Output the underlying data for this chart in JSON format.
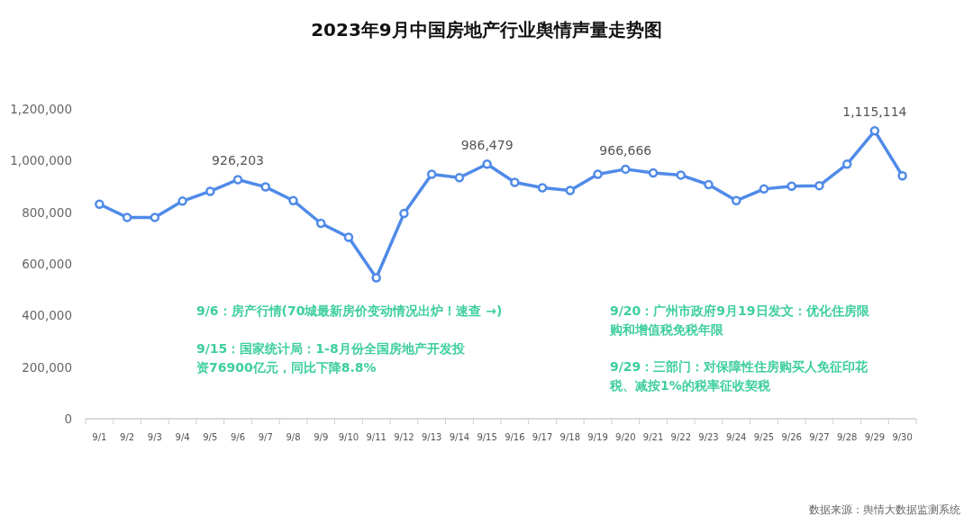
{
  "chart_data": {
    "type": "line",
    "title": "2023年9月中国房地产行业舆情声量走势图",
    "categories": [
      "9/1",
      "9/2",
      "9/3",
      "9/4",
      "9/5",
      "9/6",
      "9/7",
      "9/8",
      "9/9",
      "9/10",
      "9/11",
      "9/12",
      "9/13",
      "9/14",
      "9/15",
      "9/16",
      "9/17",
      "9/18",
      "9/19",
      "9/20",
      "9/21",
      "9/22",
      "9/23",
      "9/24",
      "9/25",
      "9/26",
      "9/27",
      "9/28",
      "9/29",
      "9/30"
    ],
    "series": [
      {
        "color": "#4f8ae8",
        "values": [
          831000,
          780000,
          780000,
          843000,
          881000,
          926203,
          898000,
          845000,
          757000,
          703000,
          546000,
          795000,
          947000,
          934000,
          986479,
          916000,
          895000,
          884000,
          947000,
          966666,
          952000,
          944000,
          907000,
          845000,
          890000,
          901000,
          903000,
          986000,
          1115114,
          941000
        ],
        "value_labels": [
          null,
          null,
          null,
          null,
          null,
          "926,203",
          null,
          null,
          null,
          null,
          null,
          null,
          null,
          null,
          "986,479",
          null,
          null,
          null,
          null,
          "966,666",
          null,
          null,
          null,
          null,
          null,
          null,
          null,
          null,
          "1,115,114",
          null
        ]
      }
    ],
    "ylim": [
      0,
      1200000
    ],
    "yticks": [
      {
        "value": 0,
        "label": "0"
      },
      {
        "value": 200000,
        "label": "200,000"
      },
      {
        "value": 400000,
        "label": "400,000"
      },
      {
        "value": 600000,
        "label": "600,000"
      },
      {
        "value": 800000,
        "label": "800,000"
      },
      {
        "value": 1000000,
        "label": "1,000,000"
      },
      {
        "value": 1200000,
        "label": "1,200,000"
      }
    ],
    "marker": "circle",
    "grid": false,
    "annotations": [
      "9/6：房产行情(70城最新房价变动情况出炉！速查 →)",
      "9/15：国家统计局：1-8月份全国房地产开发投资76900亿元，同比下降8.8%",
      "9/20：广州市政府9月19日发文：优化住房限购和增值税免税年限",
      "9/29：三部门：对保障性住房购买人免征印花税、减按1%的税率征收契税",
      "数据来源：舆情大数据监测系统"
    ]
  }
}
